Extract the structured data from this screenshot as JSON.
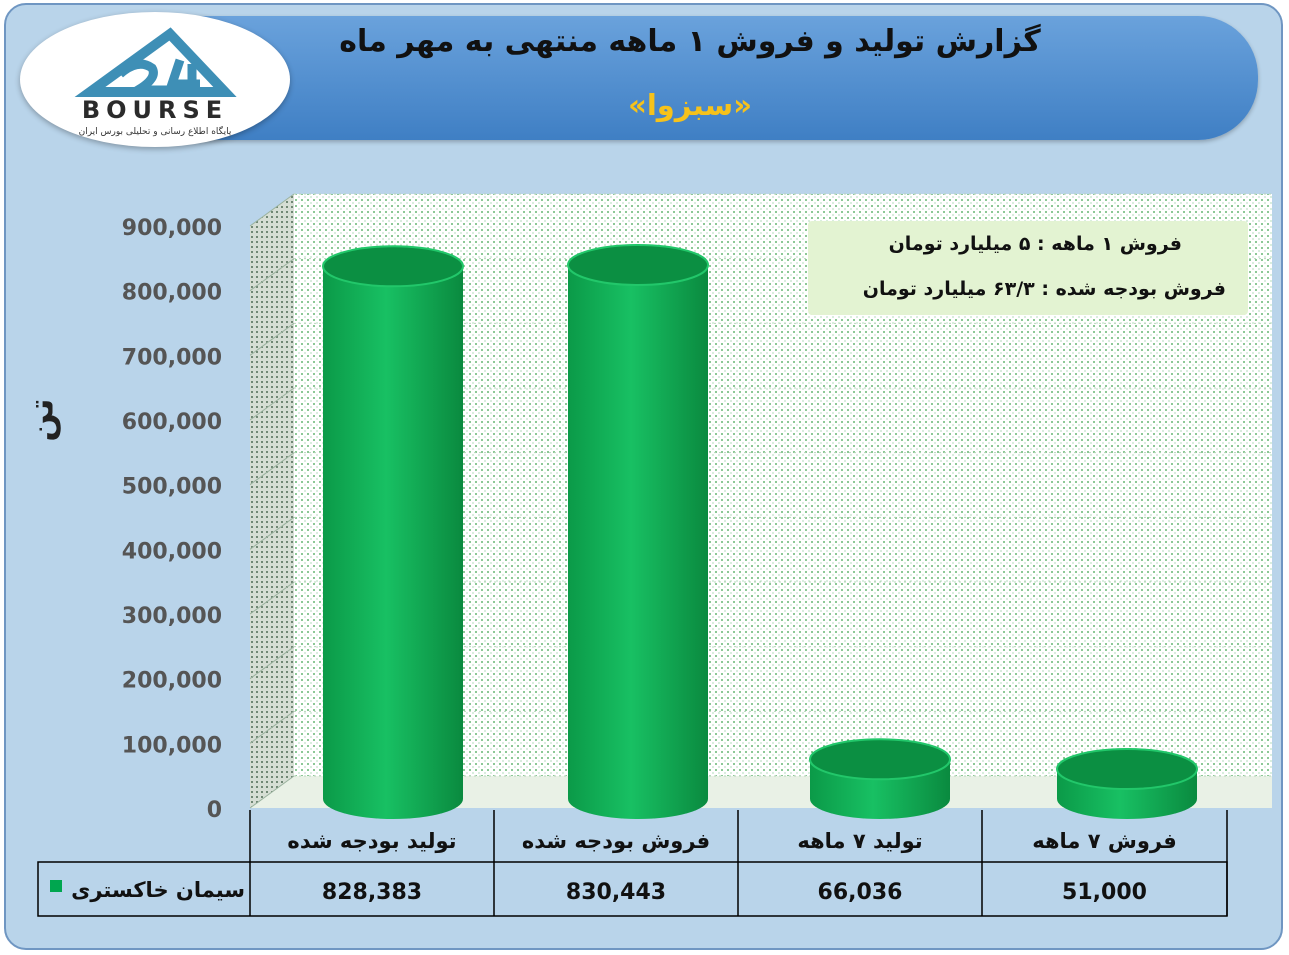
{
  "header": {
    "title": "گزارش تولید و فروش  ۱ ماهه منتهی به مهر ماه",
    "subtitle": "«سبزوا»"
  },
  "logo": {
    "brand": "BOURSE",
    "tagline": "پایگاه اطلاع رسانی و تحلیلی بورس ایران"
  },
  "ylabel": "تن",
  "notes": [
    "فروش ۱ ماهه : ۵ میلیارد تومان",
    "فروش بودجه شده : ۶۳/۳ میلیارد تومان"
  ],
  "table": {
    "series_label": "سیمان خاکستری",
    "values_display": [
      "828,383",
      "830,443",
      "66,036",
      "51,000"
    ]
  },
  "colors": {
    "bar": "#00a64f",
    "bar_light": "#19c264",
    "frame_bg": "#b9d4ea",
    "header": "#4a8bd0",
    "subtitle": "#f6c21b"
  },
  "chart_data": {
    "type": "bar",
    "categories": [
      "تولید بودجه شده",
      "فروش بودجه شده",
      "تولید ۷ ماهه",
      "فروش ۷ ماهه"
    ],
    "series": [
      {
        "name": "سیمان خاکستری",
        "values": [
          828383,
          830443,
          66036,
          51000
        ]
      }
    ],
    "ylim": [
      0,
      900000
    ],
    "yticks": [
      0,
      100000,
      200000,
      300000,
      400000,
      500000,
      600000,
      700000,
      800000,
      900000
    ],
    "ytick_labels": [
      "0",
      "100,000",
      "200,000",
      "300,000",
      "400,000",
      "500,000",
      "600,000",
      "700,000",
      "800,000",
      "900,000"
    ],
    "grid": true,
    "legend": "table"
  }
}
